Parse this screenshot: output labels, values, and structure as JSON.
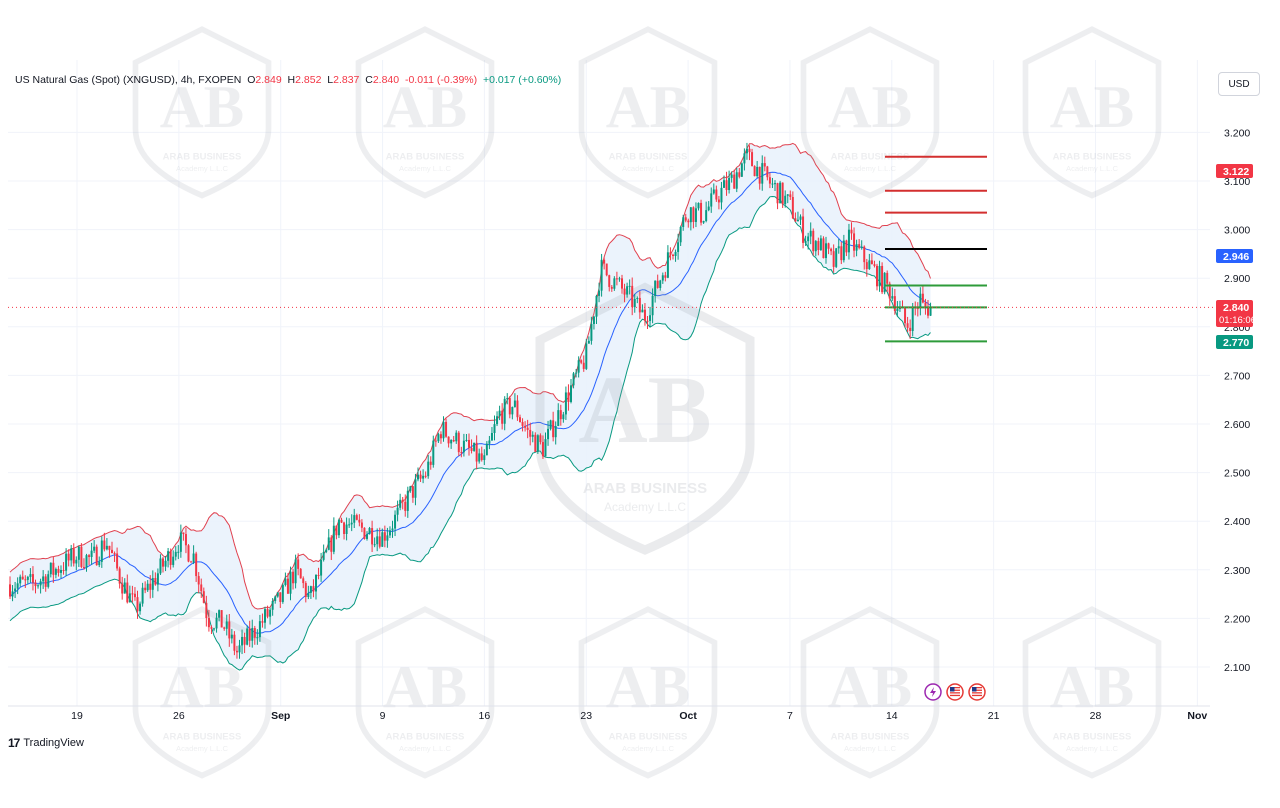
{
  "header": {
    "symbol": "US Natural Gas (Spot) (XNGUSD), 4h, FXOPEN",
    "o_label": "O",
    "o": "2.849",
    "h_label": "H",
    "h": "2.852",
    "l_label": "L",
    "l": "2.837",
    "c_label": "C",
    "c": "2.840",
    "change": "-0.011 (-0.39%)",
    "change2": "+0.017 (+0.60%)"
  },
  "currency_button": "USD",
  "branding": "TradingView",
  "watermark": {
    "line1": "ARAB BUSINESS",
    "line2": "Academy L.L.C",
    "mark": "AB"
  },
  "price_tags": {
    "current": "2.840",
    "countdown": "01:16:06",
    "upper_red": "3.122",
    "blue": "2.946",
    "lower_green": "2.770"
  },
  "colors": {
    "bull": "#089981",
    "bear": "#f23645",
    "upper_band": "#e0414f",
    "middle_band": "#2962ff",
    "lower_band": "#089981",
    "band_fill": "#e9f2fc",
    "resistance": "#d32f2f",
    "pivot": "#000000",
    "support": "#2e9b3a",
    "tag_blue": "#2962ff",
    "tag_red": "#f23645",
    "tag_green": "#089981"
  },
  "icons": [
    "lightning-event-icon",
    "us-flag-event-icon",
    "us-flag-event-icon"
  ],
  "chart_data": {
    "type": "candlestick",
    "timeframe": "4h",
    "indicator": "Bollinger Bands",
    "y_ticks": [
      2.1,
      2.2,
      2.3,
      2.4,
      2.5,
      2.6,
      2.7,
      2.8,
      2.9,
      3.0,
      3.1,
      3.2
    ],
    "y_tick_labels": [
      "2.100",
      "2.200",
      "2.300",
      "2.400",
      "2.500",
      "2.600",
      "2.700",
      "2.800",
      "2.900",
      "3.000",
      "3.100",
      "3.200"
    ],
    "ylim": [
      2.02,
      3.32
    ],
    "x_labels": [
      "19",
      "26",
      "Sep",
      "9",
      "16",
      "23",
      "Oct",
      "7",
      "14",
      "21",
      "28",
      "Nov"
    ],
    "x_label_dates": [
      "2024-08-19",
      "2024-08-26",
      "2024-09-02",
      "2024-09-09",
      "2024-09-16",
      "2024-09-23",
      "2024-09-30",
      "2024-10-07",
      "2024-10-14",
      "2024-10-21",
      "2024-10-28",
      "2024-11-04"
    ],
    "close_path": [
      [
        "2024-08-16",
        2.27
      ],
      [
        "2024-08-19",
        2.33
      ],
      [
        "2024-08-20",
        2.32
      ],
      [
        "2024-08-21",
        2.36
      ],
      [
        "2024-08-22",
        2.28
      ],
      [
        "2024-08-23",
        2.22
      ],
      [
        "2024-08-26",
        2.36
      ],
      [
        "2024-08-27",
        2.33
      ],
      [
        "2024-08-28",
        2.2
      ],
      [
        "2024-08-29",
        2.19
      ],
      [
        "2024-08-30",
        2.13
      ],
      [
        "2024-09-02",
        2.24
      ],
      [
        "2024-09-03",
        2.3
      ],
      [
        "2024-09-04",
        2.24
      ],
      [
        "2024-09-05",
        2.32
      ],
      [
        "2024-09-06",
        2.4
      ],
      [
        "2024-09-09",
        2.37
      ],
      [
        "2024-09-10",
        2.41
      ],
      [
        "2024-09-11",
        2.46
      ],
      [
        "2024-09-12",
        2.5
      ],
      [
        "2024-09-13",
        2.59
      ],
      [
        "2024-09-16",
        2.52
      ],
      [
        "2024-09-17",
        2.62
      ],
      [
        "2024-09-18",
        2.64
      ],
      [
        "2024-09-19",
        2.58
      ],
      [
        "2024-09-20",
        2.55
      ],
      [
        "2024-09-23",
        2.74
      ],
      [
        "2024-09-24",
        2.92
      ],
      [
        "2024-09-25",
        2.89
      ],
      [
        "2024-09-26",
        2.86
      ],
      [
        "2024-09-27",
        2.82
      ],
      [
        "2024-09-30",
        3.04
      ],
      [
        "2024-10-01",
        3.03
      ],
      [
        "2024-10-02",
        3.07
      ],
      [
        "2024-10-03",
        3.1
      ],
      [
        "2024-10-04",
        3.15
      ],
      [
        "2024-10-07",
        3.05
      ],
      [
        "2024-10-08",
        2.99
      ],
      [
        "2024-10-09",
        2.97
      ],
      [
        "2024-10-10",
        2.93
      ],
      [
        "2024-10-11",
        2.98
      ],
      [
        "2024-10-14",
        2.87
      ],
      [
        "2024-10-15",
        2.8
      ],
      [
        "2024-10-16",
        2.86
      ],
      [
        "2024-10-16",
        2.84
      ]
    ],
    "horizontal_levels": [
      {
        "price": 3.15,
        "color": "red"
      },
      {
        "price": 3.08,
        "color": "red"
      },
      {
        "price": 3.035,
        "color": "red"
      },
      {
        "price": 2.96,
        "color": "black"
      },
      {
        "price": 2.885,
        "color": "green"
      },
      {
        "price": 2.84,
        "color": "green"
      },
      {
        "price": 2.77,
        "color": "green"
      }
    ],
    "current_price": 2.84
  }
}
